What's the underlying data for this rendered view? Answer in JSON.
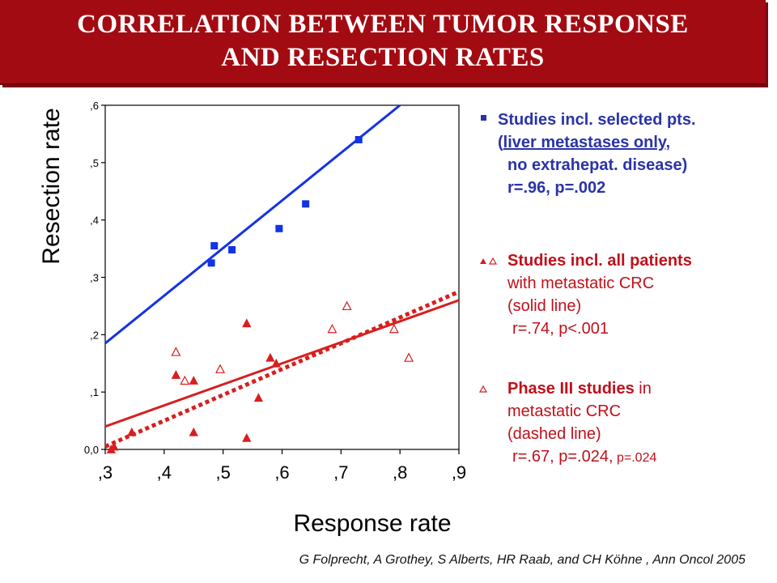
{
  "title": {
    "line1": "CORRELATION BETWEEN TUMOR RESPONSE",
    "line2": "AND RESECTION RATES"
  },
  "chart_data": {
    "type": "scatter",
    "xlabel": "Response rate",
    "ylabel": "Resection rate",
    "xlim": [
      0.3,
      0.9
    ],
    "ylim": [
      0.0,
      0.6
    ],
    "xticks": [
      ",3",
      ",4",
      ",5",
      ",6",
      ",7",
      ",8",
      ",9"
    ],
    "yticks": [
      "0,0",
      ",1",
      ",2",
      ",3",
      ",4",
      ",5",
      ",6"
    ],
    "grid": false,
    "series": [
      {
        "marker": "filled-square",
        "color": "#1432e6",
        "points": [
          [
            0.48,
            0.325
          ],
          [
            0.485,
            0.355
          ],
          [
            0.515,
            0.348
          ],
          [
            0.595,
            0.385
          ],
          [
            0.64,
            0.428
          ],
          [
            0.73,
            0.54
          ]
        ]
      },
      {
        "marker": "filled-triangle",
        "color": "#d81e1e",
        "points": [
          [
            0.31,
            0.0
          ],
          [
            0.315,
            0.005
          ],
          [
            0.345,
            0.03
          ],
          [
            0.42,
            0.13
          ],
          [
            0.45,
            0.12
          ],
          [
            0.45,
            0.03
          ],
          [
            0.54,
            0.22
          ],
          [
            0.54,
            0.02
          ],
          [
            0.56,
            0.09
          ],
          [
            0.58,
            0.16
          ],
          [
            0.59,
            0.15
          ]
        ]
      },
      {
        "marker": "hollow-triangle",
        "color": "#d81e1e",
        "points": [
          [
            0.42,
            0.17
          ],
          [
            0.435,
            0.12
          ],
          [
            0.495,
            0.14
          ],
          [
            0.685,
            0.21
          ],
          [
            0.71,
            0.25
          ],
          [
            0.79,
            0.21
          ],
          [
            0.815,
            0.16
          ]
        ]
      }
    ],
    "lines": [
      {
        "style": "solid",
        "color": "#1432e6",
        "from": [
          0.3,
          0.185
        ],
        "to": [
          0.8,
          0.6
        ]
      },
      {
        "style": "solid",
        "color": "#d81e1e",
        "from": [
          0.3,
          0.04
        ],
        "to": [
          0.9,
          0.26
        ]
      },
      {
        "style": "dashed",
        "color": "#d81e1e",
        "from": [
          0.3,
          0.005
        ],
        "to": [
          0.9,
          0.275
        ]
      }
    ]
  },
  "legend": {
    "item1": {
      "line1": "Studies incl. selected pts.",
      "line2_open": "(",
      "line2_under": "liver metastases only",
      "line2_close": ",",
      "line3": "no extrahepat. disease)",
      "line4": "r=.96, p=.002"
    },
    "item2": {
      "line1": "Studies incl. all patients",
      "line2": "with metastatic CRC",
      "line3": "(solid line)",
      "line4": "r=.74, p<.001"
    },
    "item3": {
      "line1_bold": "Phase III studies",
      "line1_rest": " in",
      "line2": "metastatic CRC",
      "line3": "(dashed line)",
      "line4_main": "r=.67, p=.024,",
      "line4_small": " p=.024"
    }
  },
  "citation": "G Folprecht, A Grothey, S Alberts, HR Raab, and  CH Köhne , Ann Oncol  2005"
}
